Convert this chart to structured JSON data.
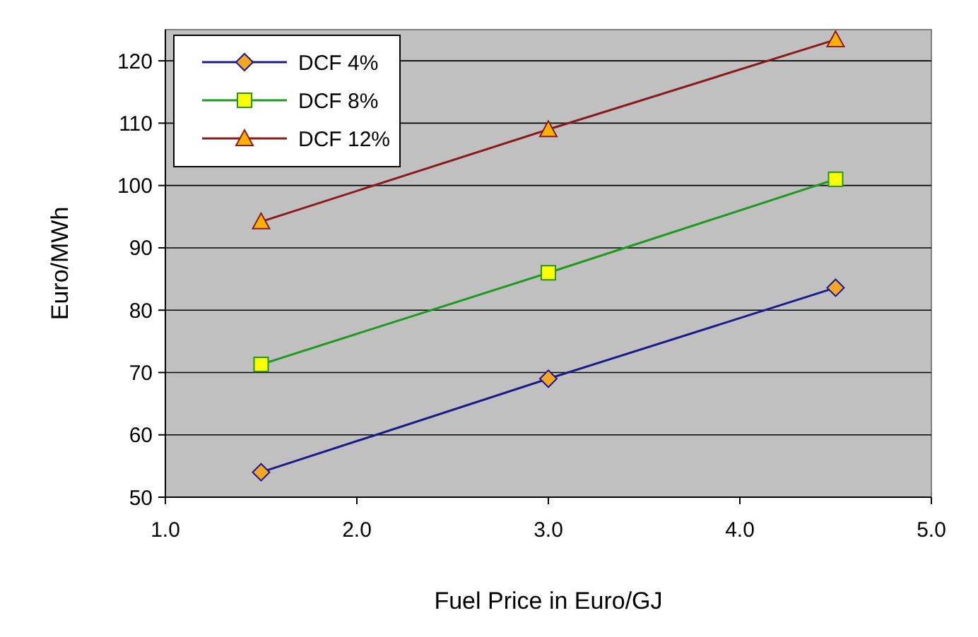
{
  "chart_data": {
    "type": "line",
    "xlabel": "Fuel Price in Euro/GJ",
    "ylabel": "Euro/MWh",
    "x": [
      1.5,
      3.0,
      4.5
    ],
    "xlim": [
      1.0,
      5.0
    ],
    "xticks": [
      {
        "value": 1,
        "label": "1.0"
      },
      {
        "value": 2,
        "label": "2.0"
      },
      {
        "value": 3,
        "label": "3.0"
      },
      {
        "value": 4,
        "label": "4.0"
      },
      {
        "value": 5,
        "label": "5.0"
      }
    ],
    "ylim": [
      50,
      125
    ],
    "yticks": [
      50,
      60,
      70,
      80,
      90,
      100,
      110,
      120
    ],
    "grid": "y",
    "legend": "top left",
    "series": [
      {
        "name": "DCF 4%",
        "color": "#1a1a8c",
        "marker": "diamond",
        "values": [
          54,
          69,
          83.6
        ]
      },
      {
        "name": "DCF 8%",
        "color": "#1e9a1e",
        "marker": "square",
        "values": [
          71.3,
          86,
          101
        ]
      },
      {
        "name": "DCF 12%",
        "color": "#8b1a1a",
        "marker": "triangle",
        "values": [
          94.2,
          109,
          123.4
        ]
      }
    ]
  }
}
